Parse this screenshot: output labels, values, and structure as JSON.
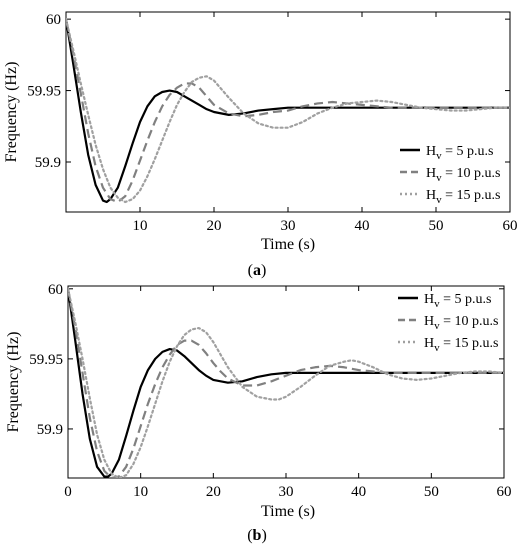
{
  "figure": {
    "panels": [
      {
        "label_prefix": "(",
        "label_letter": "a",
        "label_suffix": ")"
      },
      {
        "label_prefix": "(",
        "label_letter": "b",
        "label_suffix": ")"
      }
    ]
  },
  "chart_data": [
    {
      "type": "line",
      "panel": "a",
      "xlabel": "Time (s)",
      "ylabel": "Frequency (Hz)",
      "xlim": [
        0,
        60
      ],
      "ylim": [
        59.865,
        60.005
      ],
      "xticks": [
        10,
        20,
        30,
        40,
        50,
        60
      ],
      "xtick_labels": [
        "10",
        "20",
        "30",
        "40",
        "50",
        "60"
      ],
      "yticks": [
        59.9,
        59.95,
        60
      ],
      "ytick_labels": [
        "59.9",
        "59.95",
        "60"
      ],
      "grid": false,
      "legend_position": "bottom-right",
      "series": [
        {
          "legend_base": "H",
          "legend_sub": "v",
          "legend_rest": " = 5 p.u.s",
          "color": "#000000",
          "dash": "solid",
          "x": [
            0,
            1,
            2,
            3,
            4,
            5,
            5.5,
            6,
            7,
            8,
            9,
            10,
            11,
            12,
            13,
            14,
            15,
            16,
            17,
            18,
            19,
            20,
            22,
            24,
            26,
            28,
            30,
            34,
            38,
            42,
            46,
            50,
            55,
            60
          ],
          "y": [
            60.0,
            59.968,
            59.935,
            59.905,
            59.884,
            59.873,
            59.872,
            59.874,
            59.882,
            59.897,
            59.913,
            59.928,
            59.939,
            59.946,
            59.949,
            59.95,
            59.949,
            59.946,
            59.943,
            59.94,
            59.937,
            59.935,
            59.933,
            59.934,
            59.936,
            59.937,
            59.938,
            59.938,
            59.938,
            59.938,
            59.938,
            59.938,
            59.938,
            59.938
          ]
        },
        {
          "legend_base": "H",
          "legend_sub": "v",
          "legend_rest": " = 10 p.u.s",
          "color": "#808080",
          "dash": "dashed",
          "x": [
            0,
            1,
            2,
            3,
            4,
            5,
            6,
            7,
            8,
            9,
            10,
            11,
            12,
            13,
            14,
            15,
            16,
            17,
            18,
            19,
            20,
            22,
            24,
            26,
            28,
            30,
            32,
            34,
            36,
            38,
            40,
            44,
            48,
            52,
            56,
            60
          ],
          "y": [
            60.0,
            59.975,
            59.948,
            59.92,
            59.897,
            59.882,
            59.874,
            59.872,
            59.876,
            59.887,
            59.901,
            59.915,
            59.928,
            59.939,
            59.947,
            59.952,
            59.955,
            59.955,
            59.952,
            59.946,
            59.94,
            59.934,
            59.932,
            59.933,
            59.935,
            59.936,
            59.939,
            59.941,
            59.942,
            59.941,
            59.94,
            59.938,
            59.938,
            59.938,
            59.938,
            59.938
          ]
        },
        {
          "legend_base": "H",
          "legend_sub": "v",
          "legend_rest": " = 15 p.u.s",
          "color": "#a0a0a0",
          "dash": "dotted",
          "x": [
            0,
            1,
            2,
            3,
            4,
            5,
            6,
            7,
            8,
            9,
            10,
            11,
            12,
            13,
            14,
            15,
            16,
            17,
            18,
            19,
            20,
            21,
            22,
            24,
            26,
            28,
            30,
            32,
            34,
            36,
            38,
            40,
            42,
            44,
            46,
            48,
            50,
            52,
            54,
            56,
            58,
            60
          ],
          "y": [
            60.0,
            59.978,
            59.955,
            59.933,
            59.912,
            59.895,
            59.882,
            59.875,
            59.872,
            59.874,
            59.88,
            59.89,
            59.902,
            59.915,
            59.928,
            59.94,
            59.949,
            59.956,
            59.959,
            59.96,
            59.957,
            59.951,
            59.945,
            59.934,
            59.927,
            59.924,
            59.924,
            59.928,
            59.934,
            59.938,
            59.941,
            59.942,
            59.943,
            59.942,
            59.94,
            59.938,
            59.937,
            59.936,
            59.936,
            59.937,
            59.938,
            59.938
          ]
        }
      ]
    },
    {
      "type": "line",
      "panel": "b",
      "xlabel": "Time (s)",
      "ylabel": "Frequency (Hz)",
      "xlim": [
        0,
        60
      ],
      "ylim": [
        59.865,
        60.002
      ],
      "xticks": [
        0,
        10,
        20,
        30,
        40,
        50,
        60
      ],
      "xtick_labels": [
        "0",
        "10",
        "20",
        "30",
        "40",
        "50",
        "60"
      ],
      "yticks": [
        59.9,
        59.95,
        60
      ],
      "ytick_labels": [
        "59.9",
        "59.95",
        "60"
      ],
      "grid": false,
      "legend_position": "top-right",
      "series": [
        {
          "legend_base": "H",
          "legend_sub": "v",
          "legend_rest": " = 5 p.u.s",
          "color": "#000000",
          "dash": "solid",
          "x": [
            0,
            1,
            2,
            3,
            4,
            5,
            5.5,
            6,
            7,
            8,
            9,
            10,
            11,
            12,
            13,
            14,
            15,
            16,
            17,
            18,
            19,
            20,
            22,
            24,
            26,
            28,
            30,
            34,
            38,
            42,
            46,
            50,
            55,
            60
          ],
          "y": [
            60.0,
            59.963,
            59.925,
            59.893,
            59.873,
            59.866,
            59.866,
            59.868,
            59.878,
            59.895,
            59.913,
            59.93,
            59.942,
            59.95,
            59.955,
            59.957,
            59.956,
            59.952,
            59.947,
            59.942,
            59.938,
            59.935,
            59.933,
            59.934,
            59.937,
            59.939,
            59.94,
            59.94,
            59.94,
            59.94,
            59.94,
            59.94,
            59.94,
            59.94
          ]
        },
        {
          "legend_base": "H",
          "legend_sub": "v",
          "legend_rest": " = 10 p.u.s",
          "color": "#808080",
          "dash": "dashed",
          "x": [
            0,
            1,
            2,
            3,
            4,
            5,
            6,
            7,
            8,
            9,
            10,
            11,
            12,
            13,
            14,
            15,
            16,
            17,
            18,
            19,
            20,
            21,
            22,
            24,
            26,
            28,
            30,
            32,
            34,
            36,
            38,
            40,
            44,
            48,
            52,
            56,
            60
          ],
          "y": [
            60.0,
            59.972,
            59.94,
            59.908,
            59.884,
            59.87,
            59.865,
            59.866,
            59.873,
            59.886,
            59.902,
            59.918,
            59.932,
            59.944,
            59.953,
            59.96,
            59.963,
            59.963,
            59.96,
            59.954,
            59.947,
            59.941,
            59.936,
            59.931,
            59.931,
            59.934,
            59.938,
            59.942,
            59.944,
            59.945,
            59.944,
            59.942,
            59.94,
            59.94,
            59.94,
            59.94,
            59.94
          ]
        },
        {
          "legend_base": "H",
          "legend_sub": "v",
          "legend_rest": " = 15 p.u.s",
          "color": "#a0a0a0",
          "dash": "dotted",
          "x": [
            0,
            1,
            2,
            3,
            4,
            5,
            6,
            7,
            8,
            9,
            10,
            11,
            12,
            13,
            14,
            15,
            16,
            17,
            18,
            19,
            20,
            21,
            22,
            24,
            26,
            28,
            29,
            30,
            32,
            34,
            36,
            38,
            39,
            40,
            42,
            44,
            46,
            48,
            50,
            52,
            54,
            56,
            58,
            60
          ],
          "y": [
            60.0,
            59.976,
            59.95,
            59.922,
            59.896,
            59.878,
            59.868,
            59.865,
            59.867,
            59.875,
            59.887,
            59.902,
            59.918,
            59.934,
            59.948,
            59.959,
            59.967,
            59.971,
            59.972,
            59.969,
            59.962,
            59.953,
            59.944,
            59.93,
            59.923,
            59.921,
            59.921,
            59.923,
            59.93,
            59.938,
            59.945,
            59.948,
            59.949,
            59.948,
            59.944,
            59.939,
            59.936,
            59.935,
            59.936,
            59.938,
            59.94,
            59.941,
            59.941,
            59.94
          ]
        }
      ]
    }
  ]
}
